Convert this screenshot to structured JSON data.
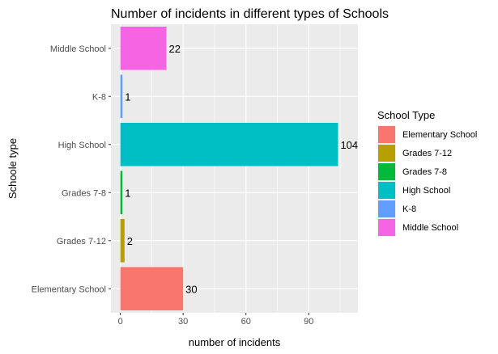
{
  "chart_data": {
    "type": "bar",
    "orientation": "horizontal",
    "title": "Number of incidents in different types of Schools",
    "xlabel": "number of incidents",
    "ylabel": "Schoole type",
    "categories": [
      "Elementary School",
      "Grades 7-12",
      "Grades 7-8",
      "High School",
      "K-8",
      "Middle School"
    ],
    "values": [
      30,
      2,
      1,
      104,
      1,
      22
    ],
    "data_labels": [
      "30",
      "2",
      "1",
      "104",
      "1",
      "22"
    ],
    "xlim": [
      -4.5,
      113.5
    ],
    "x_ticks": [
      0,
      30,
      60,
      90
    ],
    "x_tick_labels": [
      "0",
      "30",
      "60",
      "90"
    ],
    "grid": true,
    "legend": {
      "title": "School Type",
      "placement": "right",
      "entries": [
        "Elementary School",
        "Grades 7-12",
        "Grades 7-8",
        "High School",
        "K-8",
        "Middle School"
      ]
    },
    "colors": [
      "#F8766D",
      "#B79F00",
      "#00BA38",
      "#00BFC4",
      "#619CFF",
      "#F564E3"
    ],
    "panel_background": "#EBEBEB",
    "grid_color": "#FFFFFF"
  }
}
